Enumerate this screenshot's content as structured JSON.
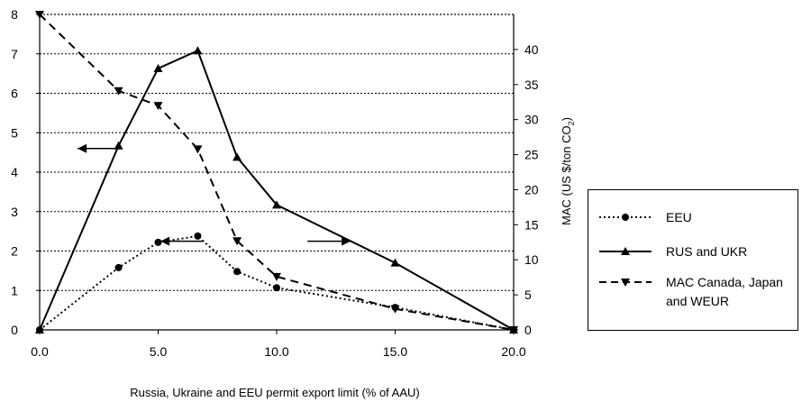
{
  "chart_data": {
    "type": "line",
    "xlabel": "Russia, Ukraine  and EEU  permit export limit  (% of AAU)",
    "ylabel_right_main": "MAC (US $/ton CO",
    "ylabel_right_sub": "2",
    "ylabel_right_end": ")",
    "xlim": [
      0,
      20
    ],
    "ylim_left": [
      0,
      8
    ],
    "ylim_right": [
      0,
      45
    ],
    "x_ticks": [
      "0.0",
      "5.0",
      "10.0",
      "15.0",
      "20.0"
    ],
    "y_ticks_left": [
      "0",
      "1",
      "2",
      "3",
      "4",
      "5",
      "6",
      "7",
      "8"
    ],
    "y_ticks_right": [
      "0",
      "5",
      "10",
      "15",
      "20",
      "25",
      "30",
      "35",
      "40"
    ],
    "grid": "horizontal dotted",
    "legend_position": "right",
    "series": [
      {
        "name": "EEU",
        "axis": "left",
        "style": "dotted",
        "marker": "circle",
        "x": [
          0,
          3.33,
          5,
          6.67,
          8.33,
          10,
          15,
          20
        ],
        "y": [
          0,
          1.58,
          2.22,
          2.38,
          1.48,
          1.07,
          0.57,
          0
        ]
      },
      {
        "name": "RUS and UKR",
        "axis": "left",
        "style": "solid",
        "marker": "triangle-up",
        "x": [
          0,
          3.33,
          5,
          6.67,
          8.33,
          10,
          15,
          20
        ],
        "y": [
          0,
          4.67,
          6.63,
          7.08,
          4.38,
          3.17,
          1.7,
          0
        ]
      },
      {
        "name": "MAC Canada, Japan\nand WEUR",
        "name_lines": [
          "MAC Canada, Japan",
          "and WEUR"
        ],
        "axis": "right",
        "style": "dashed",
        "marker": "triangle-down",
        "x": [
          0,
          3.33,
          5,
          6.67,
          8.33,
          10,
          15,
          20
        ],
        "y": [
          45,
          34.1,
          32,
          25.8,
          12.7,
          7.6,
          3,
          0
        ]
      }
    ],
    "annotations": [
      {
        "type": "arrow",
        "direction": "left",
        "at": [
          1.6,
          4.6
        ],
        "axis": "left"
      },
      {
        "type": "arrow",
        "direction": "left",
        "at": [
          5.1,
          2.25
        ],
        "axis": "left"
      },
      {
        "type": "arrow",
        "direction": "right",
        "at": [
          11.3,
          2.25
        ],
        "axis": "left"
      }
    ]
  }
}
